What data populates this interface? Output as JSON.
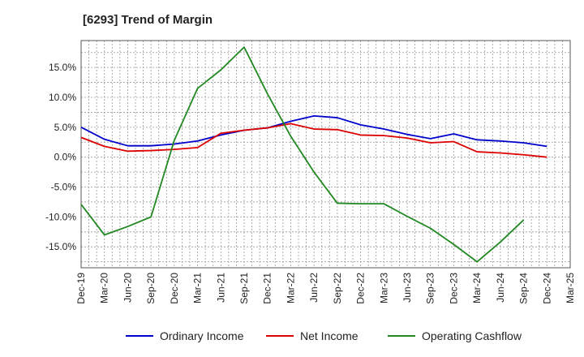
{
  "chart_data": {
    "type": "line",
    "title": "[6293]  Trend of Margin",
    "xlabel": "",
    "ylabel": "",
    "x": [
      "Dec-19",
      "Mar-20",
      "Jun-20",
      "Sep-20",
      "Dec-20",
      "Mar-21",
      "Jun-21",
      "Sep-21",
      "Dec-21",
      "Mar-22",
      "Jun-22",
      "Sep-22",
      "Dec-22",
      "Mar-23",
      "Jun-23",
      "Sep-23",
      "Dec-23",
      "Mar-24",
      "Jun-24",
      "Sep-24",
      "Dec-24",
      "Mar-25"
    ],
    "ylim": [
      -18.5,
      19.5
    ],
    "yticks": [
      15,
      10,
      5,
      0,
      -5,
      -10,
      -15
    ],
    "ytick_labels": [
      "15.0%",
      "10.0%",
      "5.0%",
      "0.0%",
      "-5.0%",
      "-10.0%",
      "-15.0%"
    ],
    "grid": true,
    "legend_position": "bottom",
    "series": [
      {
        "name": "Ordinary Income",
        "color": "#0000cc",
        "values": [
          5.0,
          3.0,
          1.9,
          1.9,
          2.2,
          2.7,
          3.7,
          4.5,
          4.9,
          6.0,
          6.9,
          6.6,
          5.4,
          4.7,
          3.8,
          3.1,
          3.9,
          2.9,
          2.7,
          2.4,
          1.8,
          null
        ]
      },
      {
        "name": "Net Income",
        "color": "#dd0000",
        "values": [
          3.3,
          1.8,
          1.0,
          1.1,
          1.3,
          1.6,
          4.0,
          4.5,
          4.9,
          5.6,
          4.7,
          4.6,
          3.7,
          3.6,
          3.2,
          2.4,
          2.6,
          0.9,
          0.7,
          0.4,
          0.0,
          null
        ]
      },
      {
        "name": "Operating Cashflow",
        "color": "#228822",
        "values": [
          -7.9,
          -13.0,
          -11.6,
          -10.0,
          2.8,
          11.5,
          14.6,
          18.4,
          10.6,
          3.5,
          -2.5,
          -7.7,
          -7.8,
          -7.8,
          -9.9,
          -11.9,
          -14.6,
          -17.5,
          -14.2,
          -10.5,
          null,
          null
        ]
      }
    ]
  }
}
